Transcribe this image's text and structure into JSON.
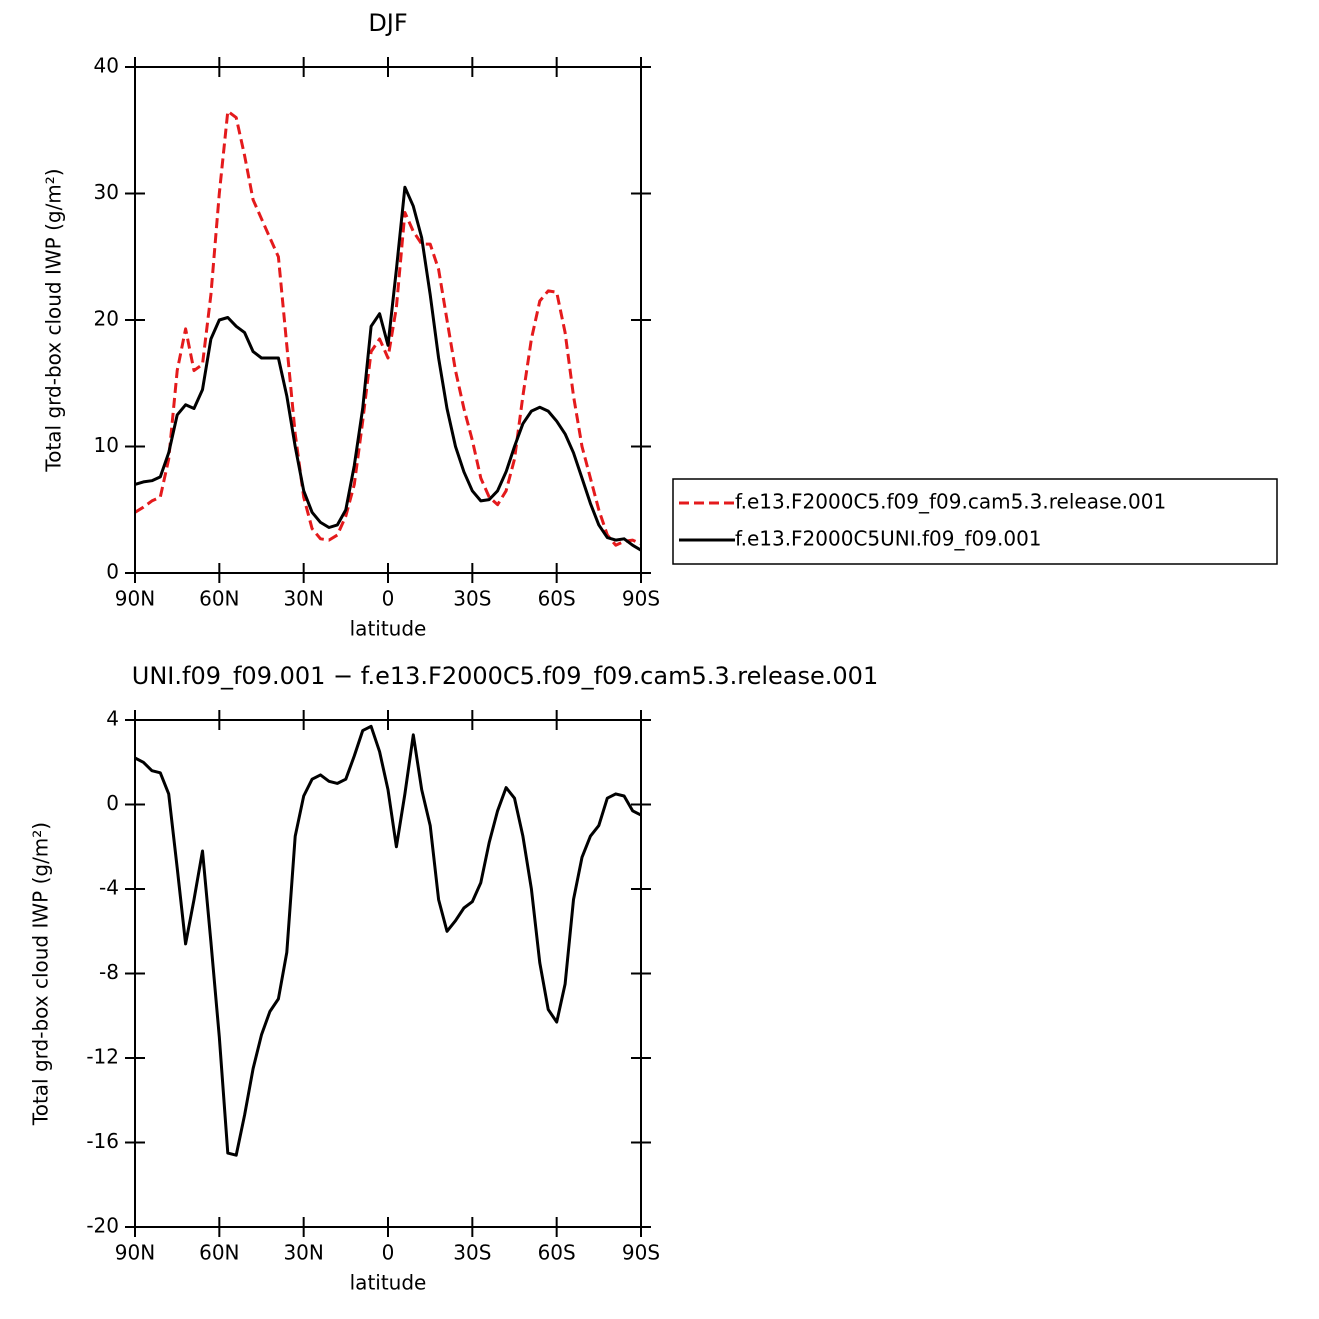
{
  "chart_data": [
    {
      "type": "line",
      "title": "DJF",
      "xlabel": "latitude",
      "ylabel": "Total grd-box cloud IWP (g/m²)",
      "x": [
        90,
        87,
        84,
        81,
        78,
        75,
        72,
        69,
        66,
        63,
        60,
        57,
        54,
        51,
        48,
        45,
        42,
        39,
        36,
        33,
        30,
        27,
        24,
        21,
        18,
        15,
        12,
        9,
        6,
        3,
        0,
        -3,
        -6,
        -9,
        -12,
        -15,
        -18,
        -21,
        -24,
        -27,
        -30,
        -33,
        -36,
        -39,
        -42,
        -45,
        -48,
        -51,
        -54,
        -57,
        -60,
        -63,
        -66,
        -69,
        -72,
        -75,
        -78,
        -81,
        -84,
        -87,
        -90
      ],
      "series": [
        {
          "name": "f.e13.F2000C5.f09_f09.cam5.3.release.001",
          "color": "#e41a1c",
          "dashed": true,
          "values": [
            4.8,
            5.2,
            5.7,
            6.0,
            9,
            16,
            19.3,
            16,
            16.5,
            22,
            30,
            36.5,
            36,
            33,
            29.5,
            28,
            26.5,
            25,
            18,
            11,
            6,
            3.5,
            2.7,
            2.6,
            3,
            4.5,
            7,
            12,
            17.5,
            18.5,
            17,
            21,
            28.5,
            27,
            26,
            26,
            24,
            20,
            16,
            13,
            10.5,
            7.5,
            6,
            5.4,
            6.5,
            9,
            14,
            18.5,
            21.5,
            22.3,
            22.2,
            19,
            14,
            10,
            7.5,
            5,
            3,
            2.2,
            2.5,
            2.6,
            2.3
          ]
        },
        {
          "name": "f.e13.F2000C5UNI.f09_f09.001",
          "color": "#000000",
          "dashed": false,
          "values": [
            7.0,
            7.2,
            7.3,
            7.6,
            9.5,
            12.5,
            13.3,
            13,
            14.5,
            18.5,
            20,
            20.2,
            19.5,
            19,
            17.5,
            17,
            17,
            17,
            14,
            10,
            6.5,
            4.8,
            4,
            3.6,
            3.8,
            5,
            8.5,
            13,
            19.5,
            20.5,
            18,
            24,
            30.5,
            29,
            26.5,
            22,
            17,
            13,
            10,
            8,
            6.5,
            5.7,
            5.8,
            6.5,
            8,
            10,
            11.8,
            12.8,
            13.1,
            12.8,
            12,
            11,
            9.5,
            7.5,
            5.5,
            3.8,
            2.8,
            2.6,
            2.7,
            2.2,
            1.8
          ]
        }
      ],
      "xlim": [
        90,
        -90
      ],
      "xticks": [
        {
          "value": 90,
          "label": "90N"
        },
        {
          "value": 60,
          "label": "60N"
        },
        {
          "value": 30,
          "label": "30N"
        },
        0,
        {
          "value": -30,
          "label": "30S"
        },
        {
          "value": -60,
          "label": "60S"
        },
        {
          "value": -90,
          "label": "90S"
        }
      ],
      "ylim": [
        0,
        40
      ],
      "yticks": [
        0,
        10,
        20,
        30,
        40
      ],
      "legend": "right"
    },
    {
      "type": "line",
      "title": "UNI.f09_f09.001 − f.e13.F2000C5.f09_f09.cam5.3.release.001",
      "xlabel": "latitude",
      "ylabel": "Total grd-box cloud IWP (g/m²)",
      "x": [
        90,
        87,
        84,
        81,
        78,
        75,
        72,
        69,
        66,
        63,
        60,
        57,
        54,
        51,
        48,
        45,
        42,
        39,
        36,
        33,
        30,
        27,
        24,
        21,
        18,
        15,
        12,
        9,
        6,
        3,
        0,
        -3,
        -6,
        -9,
        -12,
        -15,
        -18,
        -21,
        -24,
        -27,
        -30,
        -33,
        -36,
        -39,
        -42,
        -45,
        -48,
        -51,
        -54,
        -57,
        -60,
        -63,
        -66,
        -69,
        -72,
        -75,
        -78,
        -81,
        -84,
        -87,
        -90
      ],
      "series": [
        {
          "color": "#000000",
          "dashed": false,
          "values": [
            2.2,
            2.0,
            1.6,
            1.5,
            0.5,
            -3,
            -6.6,
            -4.5,
            -2.2,
            -6.5,
            -11,
            -16.5,
            -16.6,
            -14.7,
            -12.5,
            -10.9,
            -9.8,
            -9.2,
            -7,
            -1.5,
            0.4,
            1.2,
            1.4,
            1.1,
            1.0,
            1.2,
            2.3,
            3.5,
            3.7,
            2.5,
            0.7,
            -2,
            0.5,
            3.3,
            0.7,
            -1,
            -4.5,
            -6,
            -5.5,
            -4.9,
            -4.6,
            -3.7,
            -1.8,
            -0.3,
            0.8,
            0.3,
            -1.5,
            -4,
            -7.5,
            -9.7,
            -10.3,
            -8.5,
            -4.5,
            -2.5,
            -1.5,
            -1,
            0.3,
            0.5,
            0.4,
            -0.3,
            -0.5
          ]
        }
      ],
      "xlim": [
        90,
        -90
      ],
      "xticks": [
        {
          "value": 90,
          "label": "90N"
        },
        {
          "value": 60,
          "label": "60N"
        },
        {
          "value": 30,
          "label": "30N"
        },
        0,
        {
          "value": -30,
          "label": "30S"
        },
        {
          "value": -60,
          "label": "60S"
        },
        {
          "value": -90,
          "label": "90S"
        }
      ],
      "ylim": [
        -20,
        4
      ],
      "yticks": [
        -20,
        -16,
        -12,
        -8,
        -4,
        0,
        4
      ]
    }
  ]
}
